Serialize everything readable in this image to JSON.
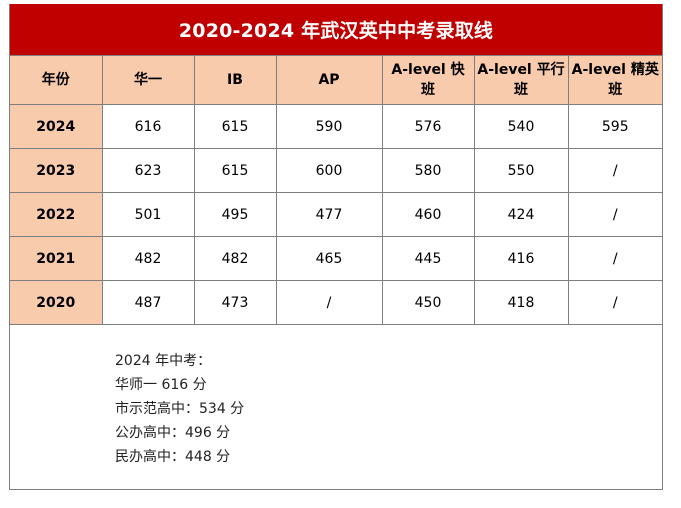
{
  "title": "2020-2024 年武汉英中中考录取线",
  "columns": [
    "年份",
    "华一",
    "IB",
    "AP",
    "A-level 快班",
    "A-level 平行班",
    "A-level 精英班"
  ],
  "rows": [
    {
      "year": "2024",
      "values": [
        "616",
        "615",
        "590",
        "576",
        "540",
        "595"
      ]
    },
    {
      "year": "2023",
      "values": [
        "623",
        "615",
        "600",
        "580",
        "550",
        "/"
      ]
    },
    {
      "year": "2022",
      "values": [
        "501",
        "495",
        "477",
        "460",
        "424",
        "/"
      ]
    },
    {
      "year": "2021",
      "values": [
        "482",
        "482",
        "465",
        "445",
        "416",
        "/"
      ]
    },
    {
      "year": "2020",
      "values": [
        "487",
        "473",
        "/",
        "450",
        "418",
        "/"
      ]
    }
  ],
  "notes": {
    "heading": "2024 年中考：",
    "lines": [
      "华师一 616 分",
      "市示范高中：534 分",
      "公办高中：496 分",
      "民办高中：448 分"
    ]
  },
  "colors": {
    "title_bg": "#c00000",
    "title_text": "#ffffff",
    "header_bg": "#f8cbad",
    "border": "#7f7f7f"
  }
}
